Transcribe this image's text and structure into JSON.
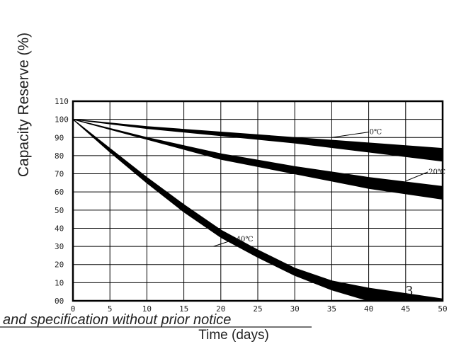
{
  "chart_data": {
    "type": "area",
    "title": "",
    "ylabel": "Capacity Reserve (%)",
    "xlabel": "Time (days)",
    "xlim": [
      0,
      50
    ],
    "ylim": [
      0,
      110
    ],
    "x_ticks": [
      "0",
      "5",
      "10",
      "15",
      "20",
      "25",
      "30",
      "35",
      "40",
      "45",
      "50"
    ],
    "y_ticks": [
      "00",
      "10",
      "20",
      "30",
      "40",
      "50",
      "60",
      "70",
      "80",
      "90",
      "100",
      "110"
    ],
    "grid": true,
    "series": [
      {
        "name": "0℃",
        "x": [
          0,
          10,
          20,
          30,
          40,
          50
        ],
        "upper": [
          100,
          96,
          93,
          90,
          87,
          84
        ],
        "lower": [
          100,
          95,
          91,
          87,
          82,
          77
        ]
      },
      {
        "name": "20℃",
        "x": [
          0,
          10,
          20,
          30,
          40,
          50
        ],
        "upper": [
          100,
          90,
          81,
          74,
          68,
          63
        ],
        "lower": [
          100,
          89,
          78,
          70,
          62,
          56
        ]
      },
      {
        "name": "40℃",
        "x": [
          0,
          5,
          10,
          15,
          20,
          25,
          30,
          35,
          40,
          45,
          50
        ],
        "upper": [
          100,
          84,
          68,
          53,
          39,
          28,
          18,
          11,
          7,
          4,
          1
        ],
        "lower": [
          100,
          82,
          65,
          49,
          35,
          24,
          14,
          6,
          0,
          0,
          0
        ]
      }
    ]
  },
  "footer_note": "and specification without prior notice",
  "page_number": "3"
}
